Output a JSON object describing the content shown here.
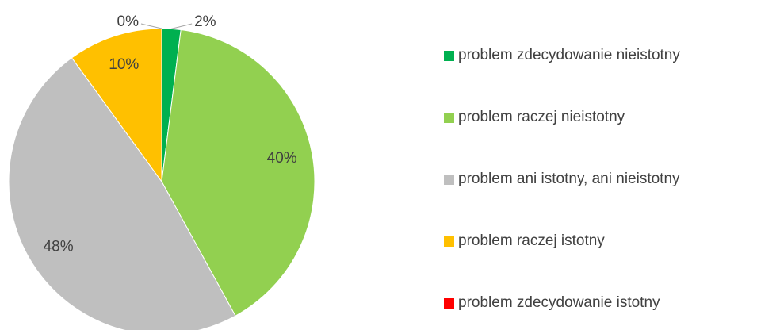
{
  "chart_data": {
    "type": "pie",
    "categories": [
      "problem zdecydowanie nieistotny",
      "problem raczej nieistotny",
      "problem ani istotny, ani nieistotny",
      "problem raczej istotny",
      "problem zdecydowanie istotny"
    ],
    "values": [
      2,
      40,
      48,
      10,
      0
    ],
    "value_labels": [
      "2%",
      "40%",
      "48%",
      "10%",
      "0%"
    ],
    "colors": [
      "#00b050",
      "#92d050",
      "#bfbfbf",
      "#ffc000",
      "#ff0000"
    ],
    "legend": "right"
  }
}
